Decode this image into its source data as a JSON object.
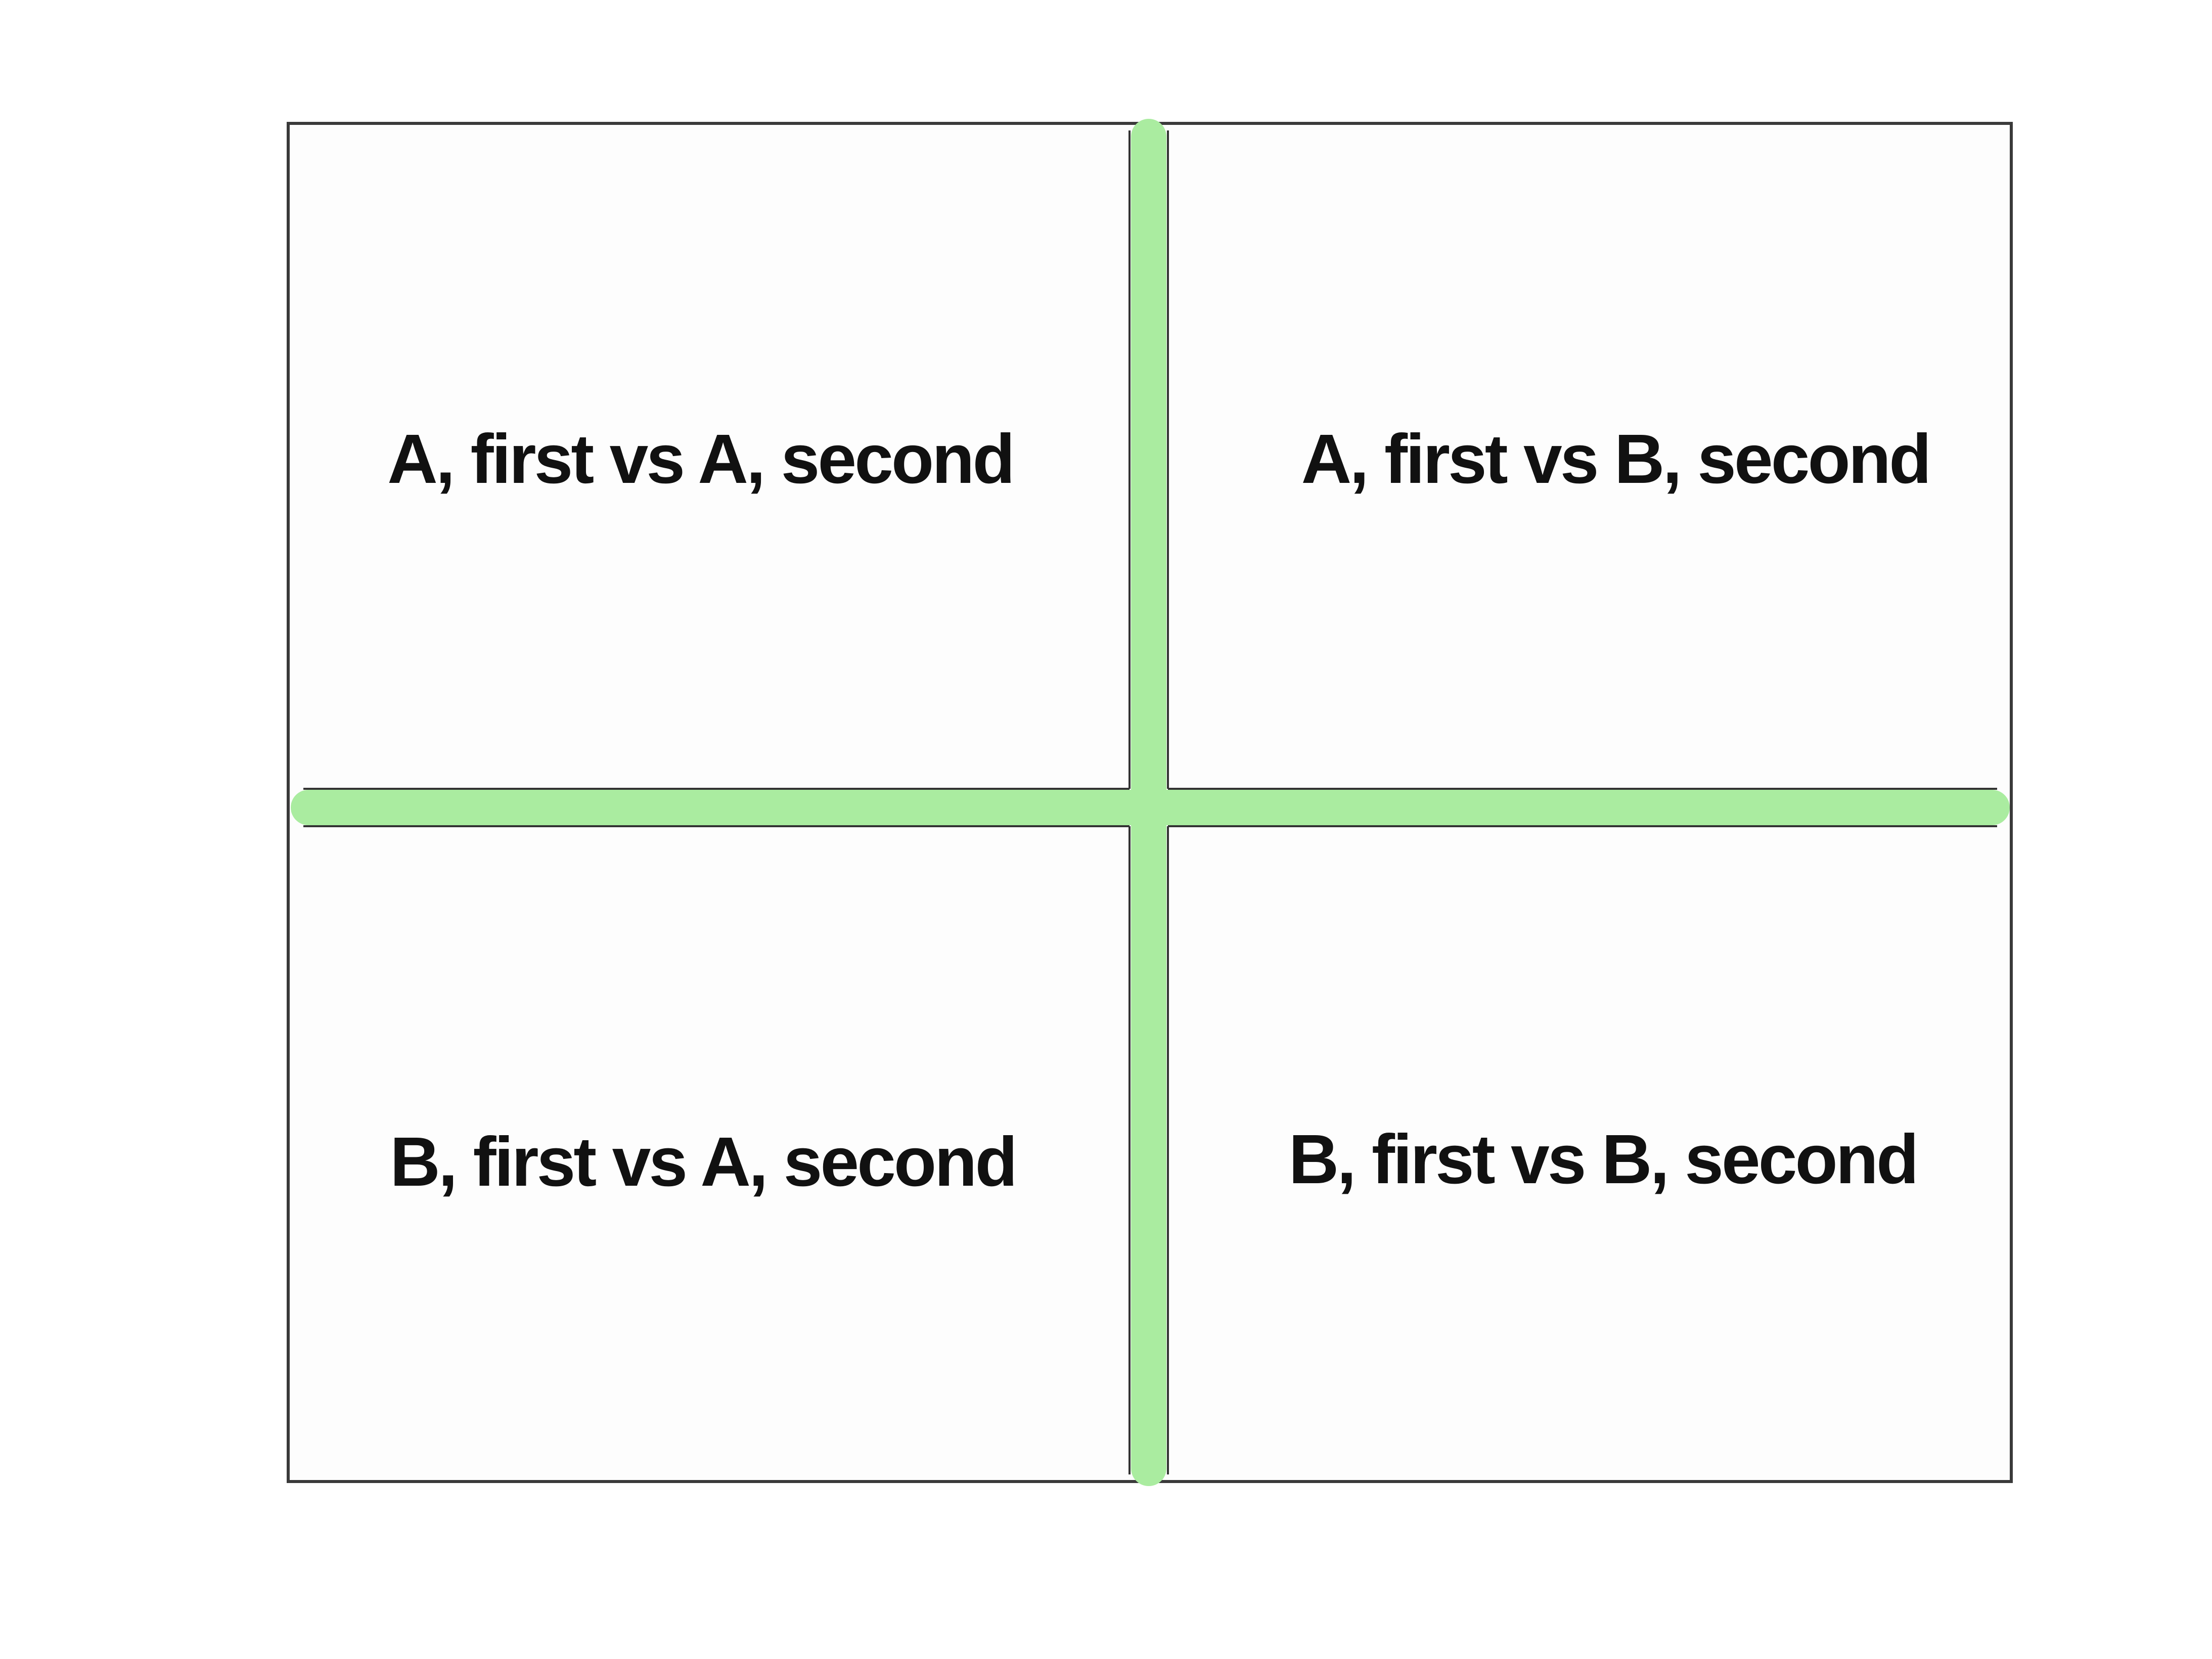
{
  "diagram": {
    "type": "2x2-matrix",
    "colors": {
      "background": "#ffffff",
      "panel": "#fdfdfd",
      "frame": "#3a3a3a",
      "divider": "#aaeca0",
      "divider_edge": "#333333",
      "text": "#111111"
    },
    "quadrants": {
      "top_left": "A, first vs A, second",
      "top_right": "A, first vs B, second",
      "bottom_left": "B, first vs A, second",
      "bottom_right": "B, first vs B, second"
    }
  }
}
